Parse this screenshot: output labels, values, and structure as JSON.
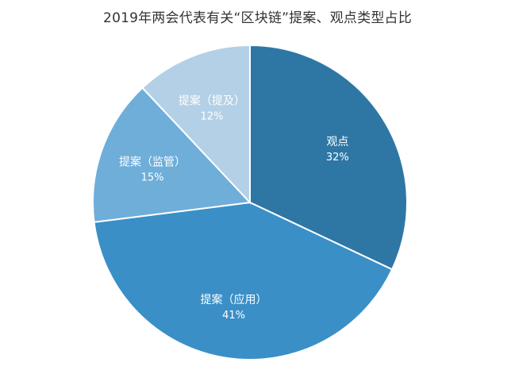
{
  "chart_data": {
    "type": "pie",
    "title": "2019年两会代表有关“区块链”提案、观点类型占比",
    "categories": [
      "观点",
      "提案（应用）",
      "提案（监管）",
      "提案（提及）"
    ],
    "values": [
      32,
      41,
      15,
      12
    ],
    "value_labels": [
      "32%",
      "41%",
      "15%",
      "12%"
    ],
    "colors": [
      "#2e77a5",
      "#3a8fc7",
      "#6eaed9",
      "#b3d0e6"
    ],
    "start": "12 o'clock",
    "direction": "clockwise",
    "legend": "none"
  }
}
